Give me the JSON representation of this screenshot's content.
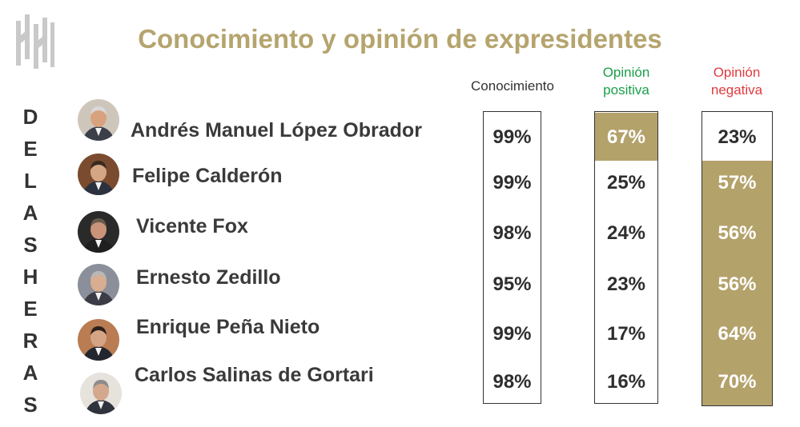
{
  "title": "Conocimiento y opinión de expresidentes",
  "brand_letters": [
    "D",
    "E",
    "L",
    "A",
    "S",
    "H",
    "E",
    "R",
    "A",
    "S"
  ],
  "columns": {
    "conocimiento": "Conocimiento",
    "positiva_line1": "Opinión",
    "positiva_line2": "positiva",
    "negativa_line1": "Opinión",
    "negativa_line2": "negativa"
  },
  "colors": {
    "title": "#b5a46e",
    "highlight": "#b4a26b",
    "positiva_header": "#1aa04a",
    "negativa_header": "#e03a3e",
    "text_dark": "#333333"
  },
  "chart_data": {
    "type": "table",
    "title": "Conocimiento y opinión de expresidentes",
    "rows": [
      {
        "name": "Andrés Manuel López Obrador",
        "conocimiento": "99%",
        "positiva": "67%",
        "negativa": "23%",
        "highlight": "positiva"
      },
      {
        "name": "Felipe Calderón",
        "conocimiento": "99%",
        "positiva": "25%",
        "negativa": "57%",
        "highlight": "negativa"
      },
      {
        "name": "Vicente Fox",
        "conocimiento": "98%",
        "positiva": "24%",
        "negativa": "56%",
        "highlight": "negativa"
      },
      {
        "name": "Ernesto Zedillo",
        "conocimiento": "95%",
        "positiva": "23%",
        "negativa": "56%",
        "highlight": "negativa"
      },
      {
        "name": "Enrique Peña Nieto",
        "conocimiento": "99%",
        "positiva": "17%",
        "negativa": "64%",
        "highlight": "negativa"
      },
      {
        "name": "Carlos Salinas de Gortari",
        "conocimiento": "98%",
        "positiva": "16%",
        "negativa": "70%",
        "highlight": "negativa"
      }
    ]
  }
}
